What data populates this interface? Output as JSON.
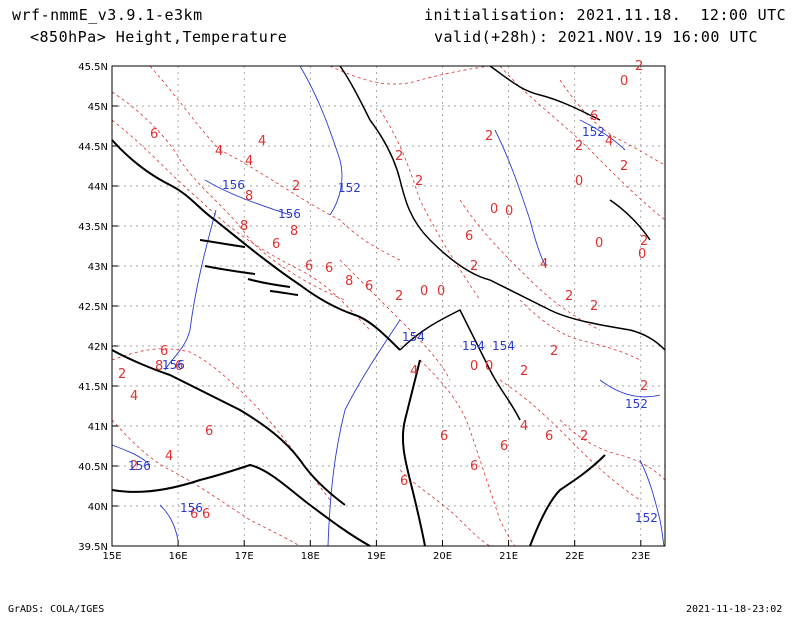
{
  "header": {
    "model": "wrf-nmmE_v3.9.1-e3km",
    "field": "<850hPa> Height,Temperature",
    "init": "initialisation: 2021.11.18.  12:00 UTC",
    "valid": "valid(+28h): 2021.NOV.19 16:00 UTC"
  },
  "footer": {
    "credit": "GrADS: COLA/IGES",
    "timestamp": "2021-11-18-23:02"
  },
  "axes": {
    "lon_ticks": [
      "15E",
      "16E",
      "17E",
      "18E",
      "19E",
      "20E",
      "21E",
      "22E",
      "23E"
    ],
    "lat_ticks": [
      "45.5N",
      "45N",
      "44.5N",
      "44N",
      "43.5N",
      "43N",
      "42.5N",
      "42N",
      "41.5N",
      "41N",
      "40.5N",
      "40N",
      "39.5N"
    ]
  },
  "contours": {
    "temperature_color": "#e03030",
    "height_color": "#2a3ccf",
    "coast_color": "#000000",
    "temperature_labels": [
      "6",
      "4",
      "4",
      "4",
      "2",
      "2",
      "2",
      "8",
      "8",
      "8",
      "6",
      "6",
      "6",
      "8",
      "6",
      "2",
      "0",
      "0",
      "2",
      "0",
      "0",
      "6",
      "4",
      "2",
      "2",
      "0",
      "2",
      "0",
      "2",
      "6",
      "4",
      "0",
      "2",
      "2",
      "0",
      "2",
      "6",
      "8",
      "6",
      "4",
      "0",
      "0",
      "2",
      "2",
      "4",
      "6",
      "6",
      "6",
      "6",
      "6",
      "4",
      "2",
      "2",
      "4",
      "2",
      "2",
      "6",
      "6",
      "6"
    ],
    "height_labels": [
      "156",
      "152",
      "152",
      "156",
      "154",
      "154",
      "154",
      "156",
      "156",
      "156",
      "152",
      "152"
    ]
  }
}
